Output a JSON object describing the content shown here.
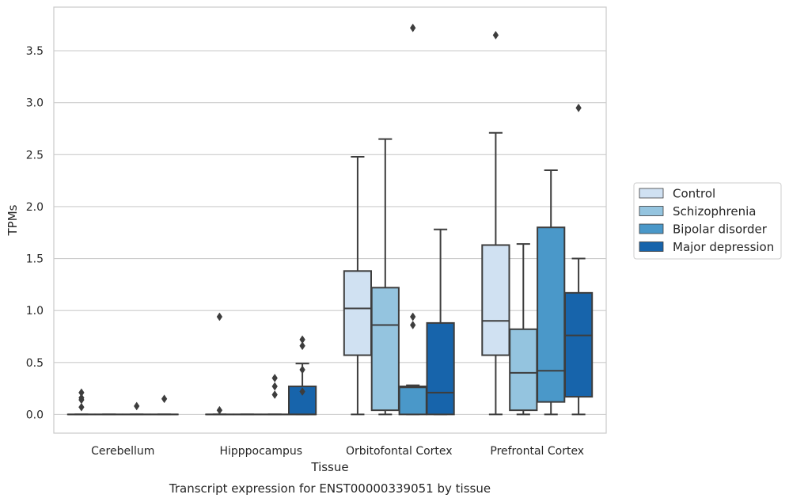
{
  "chart_data": {
    "type": "box",
    "title": "",
    "xlabel": "Tissue",
    "ylabel": "TPMs",
    "caption": "Transcript expression for ENST00000339051 by tissue",
    "categories": [
      "Cerebellum",
      "Hipppocampus",
      "Orbitofontal Cortex",
      "Prefrontal Cortex"
    ],
    "ylim": [
      -0.18,
      3.92
    ],
    "yticks": [
      0.0,
      0.5,
      1.0,
      1.5,
      2.0,
      2.5,
      3.0,
      3.5
    ],
    "ytick_labels": [
      "0.0",
      "0.5",
      "1.0",
      "1.5",
      "2.0",
      "2.5",
      "3.0",
      "3.5"
    ],
    "grid": "horizontal",
    "legend_position": "right",
    "series": [
      {
        "name": "Control",
        "color": "#d0e1f2",
        "boxes": [
          {
            "whislo": 0,
            "q1": 0,
            "med": 0,
            "q3": 0,
            "whishi": 0,
            "fliers": [
              0.07,
              0.14,
              0.16,
              0.21
            ]
          },
          {
            "whislo": 0,
            "q1": 0,
            "med": 0,
            "q3": 0,
            "whishi": 0,
            "fliers": [
              0.04,
              0.94
            ]
          },
          {
            "whislo": 0,
            "q1": 0.57,
            "med": 1.02,
            "q3": 1.38,
            "whishi": 2.48,
            "fliers": []
          },
          {
            "whislo": 0,
            "q1": 0.57,
            "med": 0.9,
            "q3": 1.63,
            "whishi": 2.71,
            "fliers": [
              3.65
            ]
          }
        ]
      },
      {
        "name": "Schizophrenia",
        "color": "#94c4df",
        "boxes": [
          {
            "whislo": 0,
            "q1": 0,
            "med": 0,
            "q3": 0,
            "whishi": 0,
            "fliers": []
          },
          {
            "whislo": 0,
            "q1": 0,
            "med": 0,
            "q3": 0,
            "whishi": 0,
            "fliers": []
          },
          {
            "whislo": 0,
            "q1": 0.04,
            "med": 0.86,
            "q3": 1.22,
            "whishi": 2.65,
            "fliers": []
          },
          {
            "whislo": 0,
            "q1": 0.04,
            "med": 0.4,
            "q3": 0.82,
            "whishi": 1.64,
            "fliers": []
          }
        ]
      },
      {
        "name": "Bipolar disorder",
        "color": "#4a98c9",
        "boxes": [
          {
            "whislo": 0,
            "q1": 0,
            "med": 0,
            "q3": 0,
            "whishi": 0,
            "fliers": [
              0.08
            ]
          },
          {
            "whislo": 0,
            "q1": 0,
            "med": 0,
            "q3": 0,
            "whishi": 0,
            "fliers": [
              0.19,
              0.27,
              0.35
            ]
          },
          {
            "whislo": 0,
            "q1": 0,
            "med": 0.26,
            "q3": 0.27,
            "whishi": 0.28,
            "fliers": [
              0.86,
              0.94,
              3.72
            ]
          },
          {
            "whislo": 0,
            "q1": 0.12,
            "med": 0.42,
            "q3": 1.8,
            "whishi": 2.35,
            "fliers": []
          }
        ]
      },
      {
        "name": "Major depression",
        "color": "#1764ab",
        "boxes": [
          {
            "whislo": 0,
            "q1": 0,
            "med": 0,
            "q3": 0,
            "whishi": 0,
            "fliers": [
              0.15
            ]
          },
          {
            "whislo": 0,
            "q1": 0,
            "med": 0,
            "q3": 0.27,
            "whishi": 0.49,
            "fliers": [
              0.22,
              0.43,
              0.66,
              0.72
            ]
          },
          {
            "whislo": 0,
            "q1": 0,
            "med": 0.21,
            "q3": 0.88,
            "whishi": 1.78,
            "fliers": []
          },
          {
            "whislo": 0,
            "q1": 0.17,
            "med": 0.76,
            "q3": 1.17,
            "whishi": 1.5,
            "fliers": [
              2.95
            ]
          }
        ]
      }
    ]
  }
}
